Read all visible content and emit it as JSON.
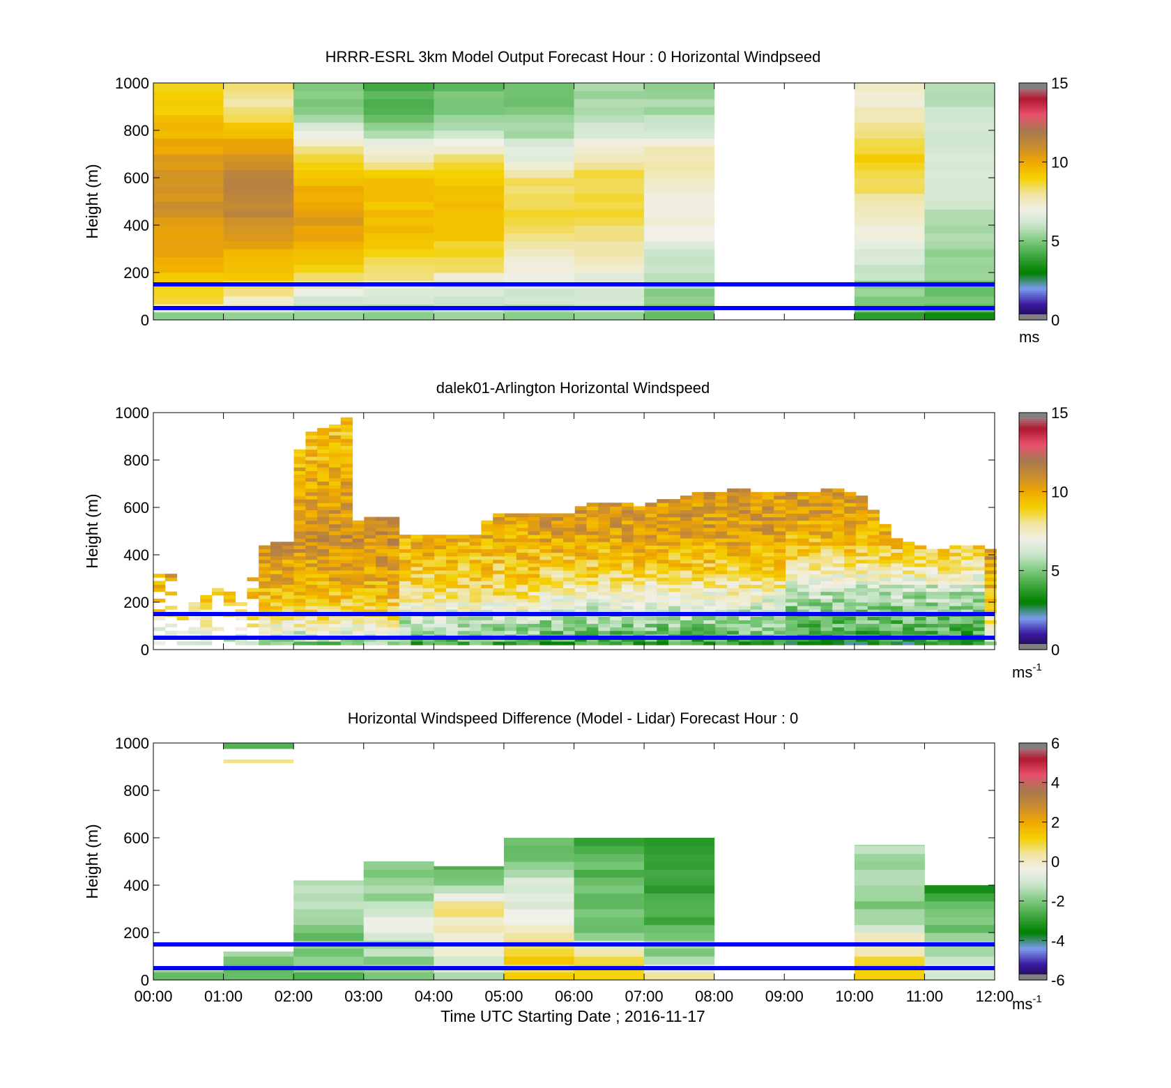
{
  "colors": {
    "speed_colormap": [
      "#1a0a3a",
      "#3a18a0",
      "#7c9cf0",
      "#008000",
      "#3aa43a",
      "#7cc87c",
      "#c8e4c8",
      "#f0f0e8",
      "#f0e4a0",
      "#f4d000",
      "#f0a800",
      "#c88c30",
      "#a87850",
      "#e8506e",
      "#b01830",
      "#a0a0a0"
    ],
    "diff_colormap": [
      "#1a0a3a",
      "#3a18a0",
      "#7c9cf0",
      "#008000",
      "#3aa43a",
      "#7cc87c",
      "#c8e4c8",
      "#f0f0e8",
      "#f0e4a0",
      "#f4d000",
      "#f0a800",
      "#c88c30",
      "#a87850",
      "#e8506e",
      "#b01830",
      "#a0a0a0"
    ],
    "reference_lines": "#0000ff"
  },
  "chart_data": [
    {
      "type": "heatmap",
      "title": "HRRR-ESRL 3km Model Output   Forecast Hour : 0 Horizontal Windpseed",
      "ylabel": "Height (m)",
      "ylim": [
        0,
        1000
      ],
      "yticks": [
        "0",
        "200",
        "400",
        "600",
        "800",
        "1000"
      ],
      "x_tick_hours": [
        0,
        1,
        2,
        3,
        4,
        5,
        6,
        7,
        8,
        9,
        10,
        11,
        12
      ],
      "xlim_hours": [
        0,
        12
      ],
      "reference_lines_m": [
        50,
        150
      ],
      "colorbar": {
        "min": 0,
        "max": 15,
        "ticks": [
          "0",
          "5",
          "10",
          "15"
        ],
        "unit": "ms",
        "unit_sup": ""
      },
      "grid_columns": [
        {
          "start_hour": 0,
          "end_hour": 1,
          "profile": [
            [
              0,
              5
            ],
            [
              40,
              6
            ],
            [
              60,
              7.5
            ],
            [
              100,
              9
            ],
            [
              200,
              9.5
            ],
            [
              400,
              10.5
            ],
            [
              600,
              11
            ],
            [
              800,
              9.5
            ],
            [
              900,
              9
            ]
          ]
        },
        {
          "start_hour": 1,
          "end_hour": 2,
          "profile": [
            [
              0,
              5
            ],
            [
              40,
              6
            ],
            [
              100,
              7.5
            ],
            [
              160,
              9
            ],
            [
              200,
              9
            ],
            [
              400,
              11
            ],
            [
              600,
              11.5
            ],
            [
              800,
              9.5
            ],
            [
              900,
              8
            ]
          ]
        },
        {
          "start_hour": 2,
          "end_hour": 3,
          "profile": [
            [
              0,
              5
            ],
            [
              60,
              6
            ],
            [
              140,
              7.5
            ],
            [
              200,
              9
            ],
            [
              400,
              10.5
            ],
            [
              600,
              9.5
            ],
            [
              700,
              8.2
            ],
            [
              800,
              6.5
            ],
            [
              900,
              5
            ]
          ]
        },
        {
          "start_hour": 3,
          "end_hour": 4,
          "profile": [
            [
              0,
              5
            ],
            [
              60,
              6
            ],
            [
              140,
              7
            ],
            [
              200,
              8.5
            ],
            [
              400,
              9.6
            ],
            [
              600,
              9.2
            ],
            [
              700,
              7.4
            ],
            [
              800,
              5.5
            ],
            [
              900,
              4.4
            ]
          ]
        },
        {
          "start_hour": 4,
          "end_hour": 5,
          "profile": [
            [
              0,
              5
            ],
            [
              60,
              6
            ],
            [
              140,
              6.5
            ],
            [
              200,
              8
            ],
            [
              400,
              9.5
            ],
            [
              600,
              9.1
            ],
            [
              700,
              7.9
            ],
            [
              800,
              5.8
            ],
            [
              900,
              4.8
            ]
          ]
        },
        {
          "start_hour": 5,
          "end_hour": 6,
          "profile": [
            [
              0,
              5
            ],
            [
              60,
              6
            ],
            [
              140,
              6.5
            ],
            [
              200,
              7
            ],
            [
              400,
              8.8
            ],
            [
              600,
              8.2
            ],
            [
              700,
              6.6
            ],
            [
              800,
              5.6
            ],
            [
              900,
              4.8
            ]
          ]
        },
        {
          "start_hour": 6,
          "end_hour": 7,
          "profile": [
            [
              0,
              5
            ],
            [
              60,
              6
            ],
            [
              140,
              6.5
            ],
            [
              200,
              7
            ],
            [
              400,
              8.5
            ],
            [
              600,
              8.6
            ],
            [
              700,
              7.4
            ],
            [
              800,
              6.4
            ],
            [
              900,
              5.6
            ]
          ]
        },
        {
          "start_hour": 7,
          "end_hour": 8,
          "profile": [
            [
              0,
              4.8
            ],
            [
              60,
              5
            ],
            [
              140,
              5.5
            ],
            [
              200,
              5.8
            ],
            [
              400,
              7.1
            ],
            [
              600,
              7.5
            ],
            [
              700,
              7.9
            ],
            [
              800,
              6.3
            ],
            [
              900,
              5.5
            ]
          ]
        },
        {
          "start_hour": 10,
          "end_hour": 11,
          "profile": [
            [
              0,
              3.5
            ],
            [
              60,
              5
            ],
            [
              140,
              5.3
            ],
            [
              200,
              6
            ],
            [
              400,
              7.2
            ],
            [
              600,
              8.8
            ],
            [
              700,
              9.1
            ],
            [
              800,
              8.1
            ],
            [
              900,
              7.3
            ]
          ]
        },
        {
          "start_hour": 11,
          "end_hour": 12,
          "profile": [
            [
              0,
              3
            ],
            [
              60,
              4.8
            ],
            [
              140,
              5
            ],
            [
              200,
              5.3
            ],
            [
              400,
              5.8
            ],
            [
              600,
              6.4
            ],
            [
              700,
              6.6
            ],
            [
              800,
              6.3
            ],
            [
              900,
              5.8
            ]
          ]
        }
      ]
    },
    {
      "type": "heatmap",
      "title": "dalek01-Arlington  Horizontal Windspeed",
      "ylabel": "Height (m)",
      "ylim": [
        0,
        1000
      ],
      "yticks": [
        "0",
        "200",
        "400",
        "600",
        "800",
        "1000"
      ],
      "x_tick_hours": [
        0,
        1,
        2,
        3,
        4,
        5,
        6,
        7,
        8,
        9,
        10,
        11,
        12
      ],
      "xlim_hours": [
        0,
        12
      ],
      "reference_lines_m": [
        50,
        150
      ],
      "colorbar": {
        "min": 0,
        "max": 15,
        "ticks": [
          "0",
          "5",
          "10",
          "15"
        ],
        "unit": "ms",
        "unit_sup": "-1"
      },
      "top_height_profile": [
        [
          0,
          320
        ],
        [
          1.2,
          250
        ],
        [
          1.4,
          300
        ],
        [
          1.5,
          420
        ],
        [
          1.8,
          450
        ],
        [
          2.0,
          440
        ],
        [
          2.1,
          900
        ],
        [
          2.8,
          970
        ],
        [
          2.9,
          540
        ],
        [
          3.1,
          560
        ],
        [
          3.5,
          560
        ],
        [
          3.6,
          470
        ],
        [
          4.0,
          480
        ],
        [
          4.4,
          470
        ],
        [
          4.6,
          480
        ],
        [
          4.8,
          560
        ],
        [
          5.5,
          570
        ],
        [
          5.9,
          560
        ],
        [
          6.2,
          610
        ],
        [
          6.8,
          610
        ],
        [
          7.0,
          600
        ],
        [
          7.5,
          640
        ],
        [
          8.0,
          660
        ],
        [
          8.3,
          670
        ],
        [
          8.7,
          660
        ],
        [
          9.1,
          650
        ],
        [
          9.7,
          670
        ],
        [
          10.1,
          650
        ],
        [
          10.3,
          570
        ],
        [
          10.6,
          460
        ],
        [
          10.9,
          440
        ],
        [
          11.2,
          410
        ],
        [
          11.6,
          440
        ],
        [
          11.9,
          420
        ]
      ],
      "lidar_profiles": [
        {
          "hours": [
            0.5,
            1.5
          ],
          "profile": [
            [
              0,
              5
            ],
            [
              50,
              6.5
            ],
            [
              150,
              8.5
            ],
            [
              300,
              10
            ],
            [
              500,
              11
            ]
          ]
        },
        {
          "hours": [
            1.5,
            3.5
          ],
          "profile": [
            [
              0,
              4
            ],
            [
              50,
              6
            ],
            [
              150,
              8.5
            ],
            [
              300,
              10
            ],
            [
              500,
              11
            ],
            [
              800,
              9.5
            ]
          ]
        },
        {
          "hours": [
            3.5,
            5.5
          ],
          "profile": [
            [
              0,
              3.5
            ],
            [
              50,
              5
            ],
            [
              150,
              6.5
            ],
            [
              250,
              8.5
            ],
            [
              400,
              9.5
            ],
            [
              600,
              10.5
            ]
          ]
        },
        {
          "hours": [
            5.5,
            9.0
          ],
          "profile": [
            [
              0,
              3
            ],
            [
              50,
              4.5
            ],
            [
              150,
              6
            ],
            [
              250,
              7.5
            ],
            [
              350,
              9
            ],
            [
              500,
              10.5
            ],
            [
              700,
              10.5
            ]
          ]
        },
        {
          "hours": [
            9.0,
            11.9
          ],
          "profile": [
            [
              0,
              2.5
            ],
            [
              50,
              4
            ],
            [
              150,
              5
            ],
            [
              250,
              6
            ],
            [
              350,
              8
            ],
            [
              500,
              10
            ],
            [
              700,
              10.5
            ]
          ]
        }
      ]
    },
    {
      "type": "heatmap",
      "title": "Horizontal Windspeed Difference (Model - Lidar) Forecast Hour : 0",
      "xlabel": "Time UTC  Starting Date ; 2016-11-17",
      "ylabel": "Height (m)",
      "ylim": [
        0,
        1000
      ],
      "yticks": [
        "0",
        "200",
        "400",
        "600",
        "800",
        "1000"
      ],
      "x_tick_hours": [
        0,
        1,
        2,
        3,
        4,
        5,
        6,
        7,
        8,
        9,
        10,
        11,
        12
      ],
      "x_tick_labels": [
        "00:00",
        "01:00",
        "02:00",
        "03:00",
        "04:00",
        "05:00",
        "06:00",
        "07:00",
        "08:00",
        "09:00",
        "10:00",
        "11:00",
        "12:00"
      ],
      "xlim_hours": [
        0,
        12
      ],
      "reference_lines_m": [
        50,
        150
      ],
      "colorbar": {
        "min": -6,
        "max": 6,
        "ticks": [
          "-6",
          "-4",
          "-2",
          "0",
          "2",
          "4",
          "6"
        ],
        "unit": "ms",
        "unit_sup": "-1"
      },
      "grid_columns": [
        {
          "start_hour": 0,
          "end_hour": 1,
          "top_m": 40,
          "profile": [
            [
              0,
              -2
            ],
            [
              40,
              -2
            ]
          ]
        },
        {
          "start_hour": 1,
          "end_hour": 2,
          "top_m": 120,
          "profile": [
            [
              0,
              -2.5
            ],
            [
              60,
              -2
            ],
            [
              120,
              -1.5
            ]
          ]
        },
        {
          "start_hour": 2,
          "end_hour": 3,
          "top_m": 420,
          "profile": [
            [
              0,
              -2.5
            ],
            [
              100,
              -2
            ],
            [
              200,
              -2
            ],
            [
              300,
              -1.5
            ],
            [
              420,
              -1.5
            ]
          ]
        },
        {
          "start_hour": 3,
          "end_hour": 4,
          "top_m": 500,
          "profile": [
            [
              0,
              -2
            ],
            [
              150,
              -1.5
            ],
            [
              250,
              -0.5
            ],
            [
              350,
              -1.5
            ],
            [
              500,
              -2
            ]
          ]
        },
        {
          "start_hour": 4,
          "end_hour": 5,
          "top_m": 480,
          "profile": [
            [
              0,
              -1.5
            ],
            [
              100,
              -0.5
            ],
            [
              300,
              0.5
            ],
            [
              400,
              -1.5
            ],
            [
              480,
              -2.5
            ]
          ]
        },
        {
          "start_hour": 5,
          "end_hour": 6,
          "top_m": 600,
          "profile": [
            [
              0,
              1.2
            ],
            [
              100,
              1
            ],
            [
              200,
              -0.2
            ],
            [
              300,
              -0.5
            ],
            [
              400,
              -1
            ],
            [
              600,
              -2.5
            ]
          ]
        },
        {
          "start_hour": 6,
          "end_hour": 7,
          "top_m": 600,
          "profile": [
            [
              0,
              1
            ],
            [
              100,
              0.5
            ],
            [
              200,
              -2
            ],
            [
              400,
              -2.2
            ],
            [
              600,
              -2.8
            ]
          ]
        },
        {
          "start_hour": 7,
          "end_hour": 8,
          "top_m": 600,
          "profile": [
            [
              0,
              0.5
            ],
            [
              100,
              -1.5
            ],
            [
              200,
              -2.3
            ],
            [
              400,
              -2.8
            ],
            [
              600,
              -3.2
            ]
          ]
        },
        {
          "start_hour": 10,
          "end_hour": 11,
          "top_m": 570,
          "profile": [
            [
              0,
              1.5
            ],
            [
              100,
              0.5
            ],
            [
              200,
              -0.5
            ],
            [
              300,
              -2
            ],
            [
              570,
              -1.5
            ]
          ]
        },
        {
          "start_hour": 11,
          "end_hour": 12,
          "top_m": 400,
          "profile": [
            [
              0,
              -0.8
            ],
            [
              100,
              -1.5
            ],
            [
              200,
              -2
            ],
            [
              400,
              -3
            ]
          ]
        }
      ],
      "extra_cells": [
        {
          "start_hour": 1,
          "end_hour": 2,
          "bottom_m": 975,
          "top_m": 1000,
          "value": -2.5
        },
        {
          "start_hour": 1,
          "end_hour": 2,
          "bottom_m": 915,
          "top_m": 930,
          "value": 0.5
        }
      ]
    }
  ]
}
